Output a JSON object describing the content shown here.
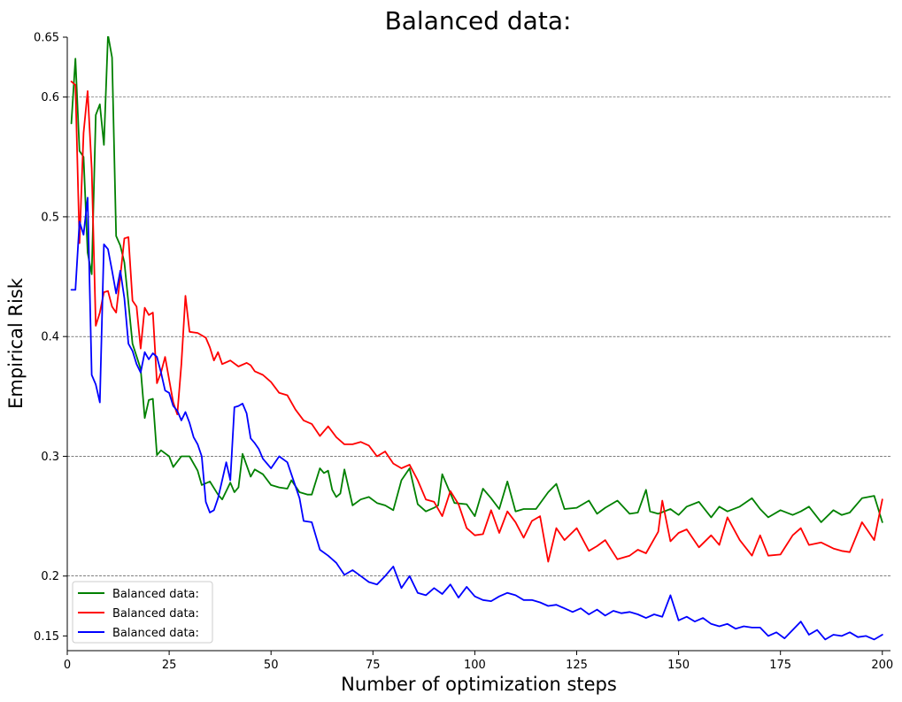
{
  "chart_data": {
    "type": "line",
    "title": "Balanced data:",
    "xlabel": "Number of optimization steps",
    "ylabel": "Empirical Risk",
    "xlim": [
      0,
      202
    ],
    "ylim": [
      0.1377,
      0.65
    ],
    "xticks": [
      0,
      25,
      50,
      75,
      100,
      125,
      150,
      175,
      200
    ],
    "xtick_labels": [
      "0",
      "25",
      "50",
      "75",
      "100",
      "125",
      "150",
      "175",
      "200"
    ],
    "yticks": [
      0.15,
      0.2,
      0.3,
      0.4,
      0.5,
      0.6,
      0.65
    ],
    "ytick_labels": [
      "0.15",
      "0.2",
      "0.3",
      "0.4",
      "0.5",
      "0.6",
      "0.65"
    ],
    "grid": "horizontal dashed at 0.2, 0.3, 0.4, 0.5, 0.6",
    "legend_position": "lower-left",
    "series": [
      {
        "name": "Balanced data:",
        "color": "#008000",
        "x": [
          1,
          2,
          3,
          4,
          5,
          6,
          7,
          8,
          9,
          10,
          11,
          12,
          13,
          14,
          16,
          18,
          19,
          20,
          21,
          22,
          23,
          25,
          26,
          28,
          30,
          32,
          33,
          35,
          37,
          38,
          40,
          41,
          42,
          43,
          45,
          46,
          48,
          50,
          52,
          54,
          55,
          57,
          59,
          60,
          62,
          63,
          64,
          65,
          66,
          67,
          68,
          70,
          72,
          74,
          76,
          78,
          80,
          82,
          84,
          86,
          88,
          90,
          91,
          92,
          95,
          98,
          100,
          102,
          104,
          106,
          108,
          110,
          112,
          115,
          118,
          120,
          122,
          125,
          128,
          130,
          132,
          135,
          138,
          140,
          142,
          143,
          145,
          148,
          150,
          152,
          155,
          158,
          160,
          162,
          165,
          168,
          170,
          172,
          175,
          178,
          180,
          182,
          185,
          188,
          190,
          192,
          195,
          198,
          200
        ],
        "values": [
          0.578,
          0.632,
          0.555,
          0.55,
          0.47,
          0.452,
          0.585,
          0.594,
          0.56,
          0.652,
          0.633,
          0.484,
          0.476,
          0.462,
          0.394,
          0.373,
          0.332,
          0.347,
          0.348,
          0.301,
          0.305,
          0.3,
          0.291,
          0.3,
          0.3,
          0.288,
          0.276,
          0.279,
          0.268,
          0.264,
          0.278,
          0.27,
          0.274,
          0.302,
          0.283,
          0.289,
          0.285,
          0.276,
          0.274,
          0.273,
          0.28,
          0.27,
          0.268,
          0.268,
          0.29,
          0.286,
          0.288,
          0.272,
          0.266,
          0.269,
          0.289,
          0.259,
          0.264,
          0.266,
          0.261,
          0.259,
          0.255,
          0.28,
          0.29,
          0.26,
          0.254,
          0.257,
          0.259,
          0.285,
          0.261,
          0.26,
          0.25,
          0.273,
          0.265,
          0.256,
          0.279,
          0.254,
          0.256,
          0.256,
          0.27,
          0.277,
          0.256,
          0.257,
          0.263,
          0.252,
          0.257,
          0.263,
          0.252,
          0.253,
          0.272,
          0.254,
          0.252,
          0.256,
          0.251,
          0.258,
          0.262,
          0.249,
          0.258,
          0.254,
          0.258,
          0.265,
          0.256,
          0.249,
          0.255,
          0.251,
          0.254,
          0.258,
          0.245,
          0.255,
          0.251,
          0.253,
          0.265,
          0.267,
          0.245
        ]
      },
      {
        "name": "Balanced data:",
        "color": "#ff0000",
        "x": [
          1,
          2,
          3,
          4,
          5,
          6,
          7,
          8,
          9,
          10,
          11,
          12,
          13,
          14,
          15,
          16,
          17,
          18,
          19,
          20,
          21,
          22,
          23,
          24,
          26,
          27,
          28,
          29,
          30,
          32,
          34,
          35,
          36,
          37,
          38,
          40,
          42,
          44,
          45,
          46,
          48,
          50,
          52,
          54,
          56,
          58,
          60,
          62,
          64,
          66,
          68,
          70,
          72,
          74,
          76,
          78,
          80,
          82,
          84,
          86,
          88,
          90,
          92,
          94,
          96,
          98,
          100,
          102,
          104,
          106,
          108,
          110,
          112,
          114,
          116,
          118,
          120,
          122,
          125,
          128,
          130,
          132,
          135,
          138,
          140,
          142,
          145,
          146,
          148,
          150,
          152,
          155,
          158,
          160,
          162,
          165,
          168,
          170,
          172,
          175,
          178,
          180,
          182,
          185,
          188,
          190,
          192,
          195,
          198,
          200
        ],
        "values": [
          0.613,
          0.61,
          0.478,
          0.57,
          0.605,
          0.54,
          0.409,
          0.42,
          0.437,
          0.438,
          0.425,
          0.42,
          0.45,
          0.482,
          0.483,
          0.43,
          0.425,
          0.39,
          0.424,
          0.418,
          0.42,
          0.361,
          0.37,
          0.383,
          0.345,
          0.335,
          0.377,
          0.434,
          0.404,
          0.403,
          0.399,
          0.391,
          0.38,
          0.387,
          0.377,
          0.38,
          0.375,
          0.378,
          0.376,
          0.371,
          0.368,
          0.362,
          0.353,
          0.351,
          0.339,
          0.33,
          0.327,
          0.317,
          0.325,
          0.316,
          0.31,
          0.31,
          0.312,
          0.309,
          0.3,
          0.304,
          0.294,
          0.29,
          0.293,
          0.28,
          0.264,
          0.262,
          0.25,
          0.271,
          0.26,
          0.24,
          0.234,
          0.235,
          0.255,
          0.236,
          0.254,
          0.245,
          0.232,
          0.246,
          0.25,
          0.212,
          0.24,
          0.23,
          0.24,
          0.221,
          0.225,
          0.23,
          0.214,
          0.217,
          0.222,
          0.219,
          0.237,
          0.263,
          0.229,
          0.236,
          0.239,
          0.224,
          0.234,
          0.226,
          0.249,
          0.23,
          0.217,
          0.234,
          0.217,
          0.218,
          0.234,
          0.24,
          0.226,
          0.228,
          0.223,
          0.221,
          0.22,
          0.245,
          0.23,
          0.264
        ]
      },
      {
        "name": "Balanced data:",
        "color": "#0000ff",
        "x": [
          1,
          2,
          3,
          4,
          5,
          6,
          7,
          8,
          9,
          10,
          11,
          12,
          13,
          14,
          15,
          16,
          17,
          18,
          19,
          20,
          21,
          22,
          23,
          24,
          25,
          26,
          27,
          28,
          29,
          30,
          31,
          32,
          33,
          34,
          35,
          36,
          37,
          38,
          39,
          40,
          41,
          42,
          43,
          44,
          45,
          46,
          47,
          48,
          50,
          52,
          54,
          56,
          57,
          58,
          60,
          62,
          64,
          66,
          68,
          70,
          72,
          74,
          76,
          78,
          80,
          82,
          84,
          86,
          88,
          90,
          92,
          94,
          96,
          98,
          100,
          102,
          104,
          106,
          108,
          110,
          112,
          114,
          116,
          118,
          120,
          122,
          124,
          126,
          128,
          130,
          132,
          134,
          136,
          138,
          140,
          142,
          144,
          146,
          148,
          150,
          152,
          154,
          156,
          158,
          160,
          162,
          164,
          166,
          168,
          170,
          172,
          174,
          176,
          178,
          180,
          182,
          184,
          186,
          188,
          190,
          192,
          194,
          196,
          198,
          200
        ],
        "values": [
          0.439,
          0.439,
          0.496,
          0.485,
          0.516,
          0.368,
          0.36,
          0.345,
          0.477,
          0.473,
          0.455,
          0.436,
          0.455,
          0.432,
          0.394,
          0.388,
          0.377,
          0.37,
          0.387,
          0.381,
          0.386,
          0.383,
          0.37,
          0.355,
          0.353,
          0.342,
          0.338,
          0.33,
          0.337,
          0.328,
          0.316,
          0.31,
          0.3,
          0.262,
          0.253,
          0.255,
          0.265,
          0.28,
          0.295,
          0.28,
          0.341,
          0.342,
          0.344,
          0.336,
          0.315,
          0.311,
          0.306,
          0.298,
          0.29,
          0.3,
          0.295,
          0.275,
          0.265,
          0.246,
          0.245,
          0.222,
          0.217,
          0.211,
          0.201,
          0.205,
          0.2,
          0.195,
          0.193,
          0.2,
          0.208,
          0.19,
          0.2,
          0.186,
          0.184,
          0.19,
          0.185,
          0.193,
          0.182,
          0.191,
          0.183,
          0.18,
          0.179,
          0.183,
          0.186,
          0.184,
          0.18,
          0.18,
          0.178,
          0.175,
          0.176,
          0.173,
          0.17,
          0.173,
          0.168,
          0.172,
          0.167,
          0.171,
          0.169,
          0.17,
          0.168,
          0.165,
          0.168,
          0.166,
          0.184,
          0.163,
          0.166,
          0.162,
          0.165,
          0.16,
          0.158,
          0.16,
          0.156,
          0.158,
          0.157,
          0.157,
          0.15,
          0.153,
          0.148,
          0.155,
          0.162,
          0.151,
          0.155,
          0.147,
          0.151,
          0.15,
          0.153,
          0.149,
          0.15,
          0.147,
          0.151
        ]
      }
    ]
  }
}
